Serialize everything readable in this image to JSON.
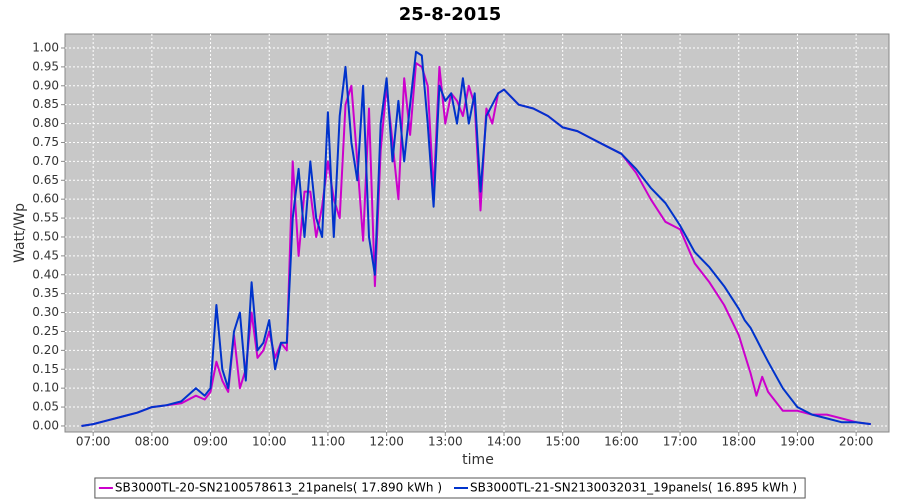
{
  "chart_data": {
    "type": "line",
    "title": "25-8-2015",
    "x_label": "time",
    "y_label": "Watt/Wp",
    "x": [
      6.8,
      7.0,
      7.25,
      7.5,
      7.75,
      8.0,
      8.25,
      8.5,
      8.75,
      8.9,
      9.0,
      9.1,
      9.2,
      9.3,
      9.4,
      9.5,
      9.6,
      9.7,
      9.8,
      9.9,
      10.0,
      10.1,
      10.2,
      10.3,
      10.4,
      10.5,
      10.6,
      10.7,
      10.8,
      10.9,
      11.0,
      11.1,
      11.2,
      11.3,
      11.4,
      11.5,
      11.6,
      11.7,
      11.8,
      11.9,
      12.0,
      12.1,
      12.2,
      12.3,
      12.4,
      12.5,
      12.6,
      12.7,
      12.8,
      12.9,
      13.0,
      13.1,
      13.2,
      13.3,
      13.4,
      13.5,
      13.6,
      13.7,
      13.8,
      13.9,
      14.0,
      14.25,
      14.5,
      14.75,
      15.0,
      15.25,
      15.5,
      15.75,
      16.0,
      16.25,
      16.5,
      16.75,
      17.0,
      17.25,
      17.5,
      17.75,
      18.0,
      18.1,
      18.2,
      18.3,
      18.4,
      18.5,
      18.75,
      19.0,
      19.25,
      19.5,
      19.75,
      20.0,
      20.25
    ],
    "series": [
      {
        "name": "SB3000TL-20-SN2100578613_21panels( 17.890 kWh )",
        "color": "#cc00cc",
        "values": [
          0,
          0.005,
          0.015,
          0.025,
          0.035,
          0.05,
          0.055,
          0.06,
          0.08,
          0.07,
          0.09,
          0.17,
          0.12,
          0.09,
          0.24,
          0.1,
          0.15,
          0.3,
          0.18,
          0.2,
          0.25,
          0.18,
          0.22,
          0.2,
          0.7,
          0.45,
          0.62,
          0.62,
          0.5,
          0.58,
          0.7,
          0.6,
          0.55,
          0.85,
          0.9,
          0.7,
          0.49,
          0.84,
          0.37,
          0.73,
          0.9,
          0.75,
          0.6,
          0.92,
          0.77,
          0.96,
          0.95,
          0.9,
          0.62,
          0.95,
          0.8,
          0.88,
          0.86,
          0.82,
          0.9,
          0.85,
          0.57,
          0.84,
          0.8,
          0.88,
          0.89,
          0.85,
          0.84,
          0.82,
          0.79,
          0.78,
          0.76,
          0.74,
          0.72,
          0.67,
          0.6,
          0.54,
          0.52,
          0.43,
          0.38,
          0.32,
          0.24,
          0.19,
          0.14,
          0.08,
          0.13,
          0.09,
          0.04,
          0.04,
          0.03,
          0.03,
          0.02,
          0.01,
          0.005
        ]
      },
      {
        "name": "SB3000TL-21-SN2130032031_19panels( 16.895 kWh )",
        "color": "#0033cc",
        "values": [
          0,
          0.005,
          0.015,
          0.025,
          0.035,
          0.05,
          0.055,
          0.065,
          0.1,
          0.08,
          0.1,
          0.32,
          0.15,
          0.1,
          0.25,
          0.3,
          0.12,
          0.38,
          0.2,
          0.22,
          0.28,
          0.15,
          0.22,
          0.22,
          0.55,
          0.68,
          0.5,
          0.7,
          0.55,
          0.5,
          0.83,
          0.5,
          0.82,
          0.95,
          0.75,
          0.65,
          0.9,
          0.5,
          0.4,
          0.8,
          0.92,
          0.7,
          0.86,
          0.7,
          0.85,
          0.99,
          0.98,
          0.8,
          0.58,
          0.9,
          0.86,
          0.88,
          0.8,
          0.92,
          0.8,
          0.88,
          0.62,
          0.82,
          0.85,
          0.88,
          0.89,
          0.85,
          0.84,
          0.82,
          0.79,
          0.78,
          0.76,
          0.74,
          0.72,
          0.68,
          0.63,
          0.59,
          0.53,
          0.46,
          0.42,
          0.37,
          0.31,
          0.28,
          0.26,
          0.23,
          0.2,
          0.17,
          0.1,
          0.05,
          0.03,
          0.02,
          0.01,
          0.01,
          0.005
        ]
      }
    ],
    "xlim": [
      6.52,
      20.56
    ],
    "xticks": [
      {
        "value": 7,
        "label": "07:00"
      },
      {
        "value": 8,
        "label": "08:00"
      },
      {
        "value": 9,
        "label": "09:00"
      },
      {
        "value": 10,
        "label": "10:00"
      },
      {
        "value": 11,
        "label": "11:00"
      },
      {
        "value": 12,
        "label": "12:00"
      },
      {
        "value": 13,
        "label": "13:00"
      },
      {
        "value": 14,
        "label": "14:00"
      },
      {
        "value": 15,
        "label": "15:00"
      },
      {
        "value": 16,
        "label": "16:00"
      },
      {
        "value": 17,
        "label": "17:00"
      },
      {
        "value": 18,
        "label": "18:00"
      },
      {
        "value": 19,
        "label": "19:00"
      },
      {
        "value": 20,
        "label": "20:00"
      }
    ],
    "ylim": [
      -0.016,
      1.037
    ],
    "yticks": [
      {
        "value": 0,
        "label": "0.00"
      },
      {
        "value": 0.05,
        "label": "0.05"
      },
      {
        "value": 0.1,
        "label": "0.10"
      },
      {
        "value": 0.15,
        "label": "0.15"
      },
      {
        "value": 0.2,
        "label": "0.20"
      },
      {
        "value": 0.25,
        "label": "0.25"
      },
      {
        "value": 0.3,
        "label": "0.30"
      },
      {
        "value": 0.35,
        "label": "0.35"
      },
      {
        "value": 0.4,
        "label": "0.40"
      },
      {
        "value": 0.45,
        "label": "0.45"
      },
      {
        "value": 0.5,
        "label": "0.50"
      },
      {
        "value": 0.55,
        "label": "0.55"
      },
      {
        "value": 0.6,
        "label": "0.60"
      },
      {
        "value": 0.65,
        "label": "0.65"
      },
      {
        "value": 0.7,
        "label": "0.70"
      },
      {
        "value": 0.75,
        "label": "0.75"
      },
      {
        "value": 0.8,
        "label": "0.80"
      },
      {
        "value": 0.85,
        "label": "0.85"
      },
      {
        "value": 0.9,
        "label": "0.90"
      },
      {
        "value": 0.95,
        "label": "0.95"
      },
      {
        "value": 1,
        "label": "1.00"
      }
    ],
    "grid": true,
    "legend": "bottom"
  }
}
